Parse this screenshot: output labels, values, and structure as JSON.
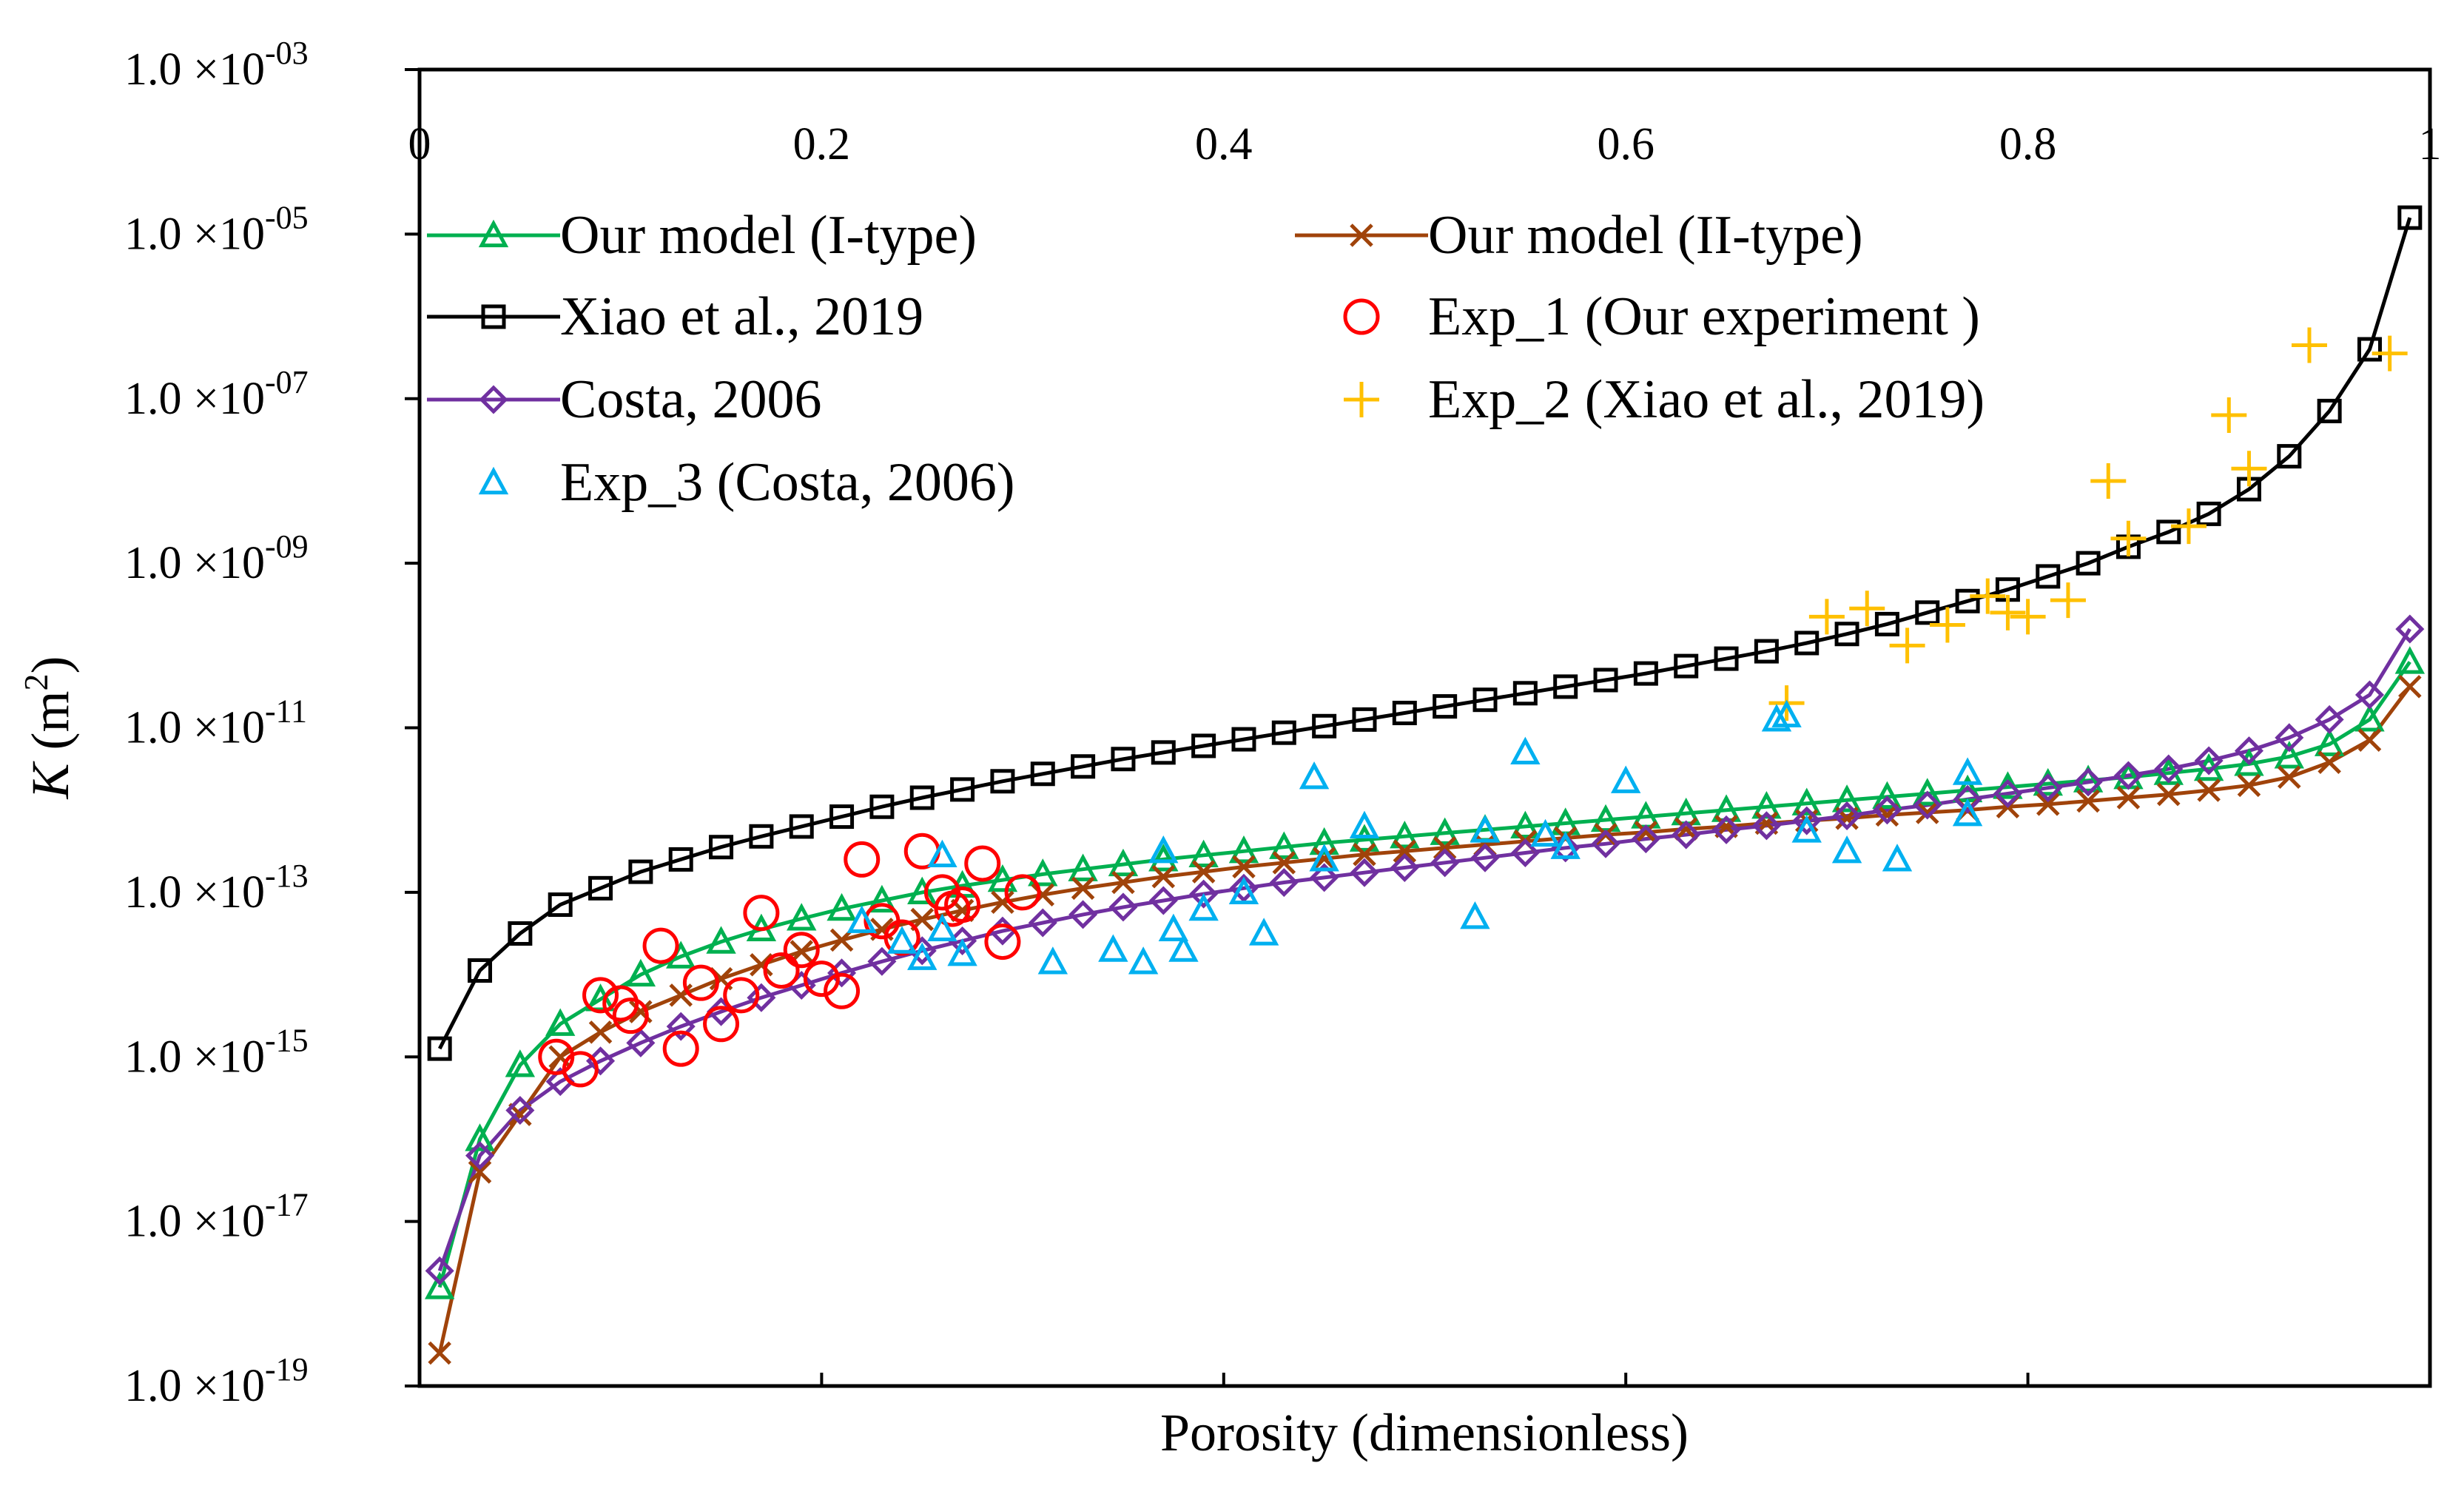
{
  "chart_data": {
    "type": "scatter",
    "title": "",
    "xlabel": "Porosity (dimensionless)",
    "ylabel": {
      "symbol": "K",
      "unit_open": " (m",
      "unit_sup": "2",
      "unit_close": ")"
    },
    "xlim": [
      0,
      1
    ],
    "ylim_log10": [
      -19,
      -3
    ],
    "x_ticks": [
      {
        "value": 0,
        "label": "0"
      },
      {
        "value": 0.2,
        "label": "0.2"
      },
      {
        "value": 0.4,
        "label": "0.4"
      },
      {
        "value": 0.6,
        "label": "0.6"
      },
      {
        "value": 0.8,
        "label": "0.8"
      },
      {
        "value": 1,
        "label": "1"
      }
    ],
    "y_ticks": [
      {
        "exp": -3,
        "mant": "1.0 ×10",
        "sup": "-03"
      },
      {
        "exp": -5,
        "mant": "1.0 ×10",
        "sup": "-05"
      },
      {
        "exp": -7,
        "mant": "1.0 ×10",
        "sup": "-07"
      },
      {
        "exp": -9,
        "mant": "1.0 ×10",
        "sup": "-09"
      },
      {
        "exp": -11,
        "mant": "1.0 ×10",
        "sup": "-11"
      },
      {
        "exp": -13,
        "mant": "1.0 ×10",
        "sup": "-13"
      },
      {
        "exp": -15,
        "mant": "1.0 ×10",
        "sup": "-15"
      },
      {
        "exp": -17,
        "mant": "1.0 ×10",
        "sup": "-17"
      },
      {
        "exp": -19,
        "mant": "1.0 ×10",
        "sup": "-19"
      }
    ],
    "x_tick_position": "top",
    "grid": false,
    "legend_position": "upper-left, two columns",
    "series": [
      {
        "name": "Our model (I-type)",
        "kind": "line",
        "marker": "triangle",
        "color": "#00b050",
        "points": [
          [
            0.01,
            -17.8
          ],
          [
            0.03,
            -16.0
          ],
          [
            0.05,
            -15.1
          ],
          [
            0.07,
            -14.6
          ],
          [
            0.09,
            -14.3
          ],
          [
            0.11,
            -14.0
          ],
          [
            0.13,
            -13.78
          ],
          [
            0.15,
            -13.6
          ],
          [
            0.17,
            -13.45
          ],
          [
            0.19,
            -13.32
          ],
          [
            0.21,
            -13.2
          ],
          [
            0.23,
            -13.1
          ],
          [
            0.25,
            -13.0
          ],
          [
            0.27,
            -12.92
          ],
          [
            0.29,
            -12.85
          ],
          [
            0.31,
            -12.78
          ],
          [
            0.33,
            -12.72
          ],
          [
            0.35,
            -12.66
          ],
          [
            0.37,
            -12.6
          ],
          [
            0.39,
            -12.55
          ],
          [
            0.41,
            -12.5
          ],
          [
            0.43,
            -12.45
          ],
          [
            0.45,
            -12.4
          ],
          [
            0.47,
            -12.36
          ],
          [
            0.49,
            -12.32
          ],
          [
            0.51,
            -12.28
          ],
          [
            0.53,
            -12.24
          ],
          [
            0.55,
            -12.2
          ],
          [
            0.57,
            -12.16
          ],
          [
            0.59,
            -12.12
          ],
          [
            0.61,
            -12.08
          ],
          [
            0.63,
            -12.04
          ],
          [
            0.65,
            -12.0
          ],
          [
            0.67,
            -11.96
          ],
          [
            0.69,
            -11.92
          ],
          [
            0.71,
            -11.88
          ],
          [
            0.73,
            -11.84
          ],
          [
            0.75,
            -11.8
          ],
          [
            0.77,
            -11.76
          ],
          [
            0.79,
            -11.72
          ],
          [
            0.81,
            -11.68
          ],
          [
            0.83,
            -11.64
          ],
          [
            0.85,
            -11.6
          ],
          [
            0.87,
            -11.55
          ],
          [
            0.89,
            -11.5
          ],
          [
            0.91,
            -11.44
          ],
          [
            0.93,
            -11.35
          ],
          [
            0.95,
            -11.2
          ],
          [
            0.97,
            -10.9
          ],
          [
            0.99,
            -10.2
          ]
        ]
      },
      {
        "name": "Our model (II-type)",
        "kind": "line",
        "marker": "cross",
        "color": "#a0430a",
        "points": [
          [
            0.01,
            -18.6
          ],
          [
            0.03,
            -16.4
          ],
          [
            0.05,
            -15.7
          ],
          [
            0.07,
            -15.0
          ],
          [
            0.09,
            -14.7
          ],
          [
            0.11,
            -14.45
          ],
          [
            0.13,
            -14.25
          ],
          [
            0.15,
            -14.05
          ],
          [
            0.17,
            -13.88
          ],
          [
            0.19,
            -13.72
          ],
          [
            0.21,
            -13.58
          ],
          [
            0.23,
            -13.45
          ],
          [
            0.25,
            -13.33
          ],
          [
            0.27,
            -13.22
          ],
          [
            0.29,
            -13.12
          ],
          [
            0.31,
            -13.03
          ],
          [
            0.33,
            -12.95
          ],
          [
            0.35,
            -12.88
          ],
          [
            0.37,
            -12.81
          ],
          [
            0.39,
            -12.75
          ],
          [
            0.41,
            -12.69
          ],
          [
            0.43,
            -12.64
          ],
          [
            0.45,
            -12.59
          ],
          [
            0.47,
            -12.54
          ],
          [
            0.49,
            -12.5
          ],
          [
            0.51,
            -12.46
          ],
          [
            0.53,
            -12.42
          ],
          [
            0.55,
            -12.38
          ],
          [
            0.57,
            -12.34
          ],
          [
            0.59,
            -12.3
          ],
          [
            0.61,
            -12.27
          ],
          [
            0.63,
            -12.23
          ],
          [
            0.65,
            -12.2
          ],
          [
            0.67,
            -12.16
          ],
          [
            0.69,
            -12.13
          ],
          [
            0.71,
            -12.1
          ],
          [
            0.73,
            -12.06
          ],
          [
            0.75,
            -12.03
          ],
          [
            0.77,
            -12.0
          ],
          [
            0.79,
            -11.96
          ],
          [
            0.81,
            -11.93
          ],
          [
            0.83,
            -11.89
          ],
          [
            0.85,
            -11.85
          ],
          [
            0.87,
            -11.81
          ],
          [
            0.89,
            -11.76
          ],
          [
            0.91,
            -11.7
          ],
          [
            0.93,
            -11.6
          ],
          [
            0.95,
            -11.42
          ],
          [
            0.97,
            -11.15
          ],
          [
            0.99,
            -10.5
          ]
        ]
      },
      {
        "name": "Xiao et al., 2019",
        "kind": "line",
        "marker": "square",
        "color": "#000000",
        "points": [
          [
            0.01,
            -14.9
          ],
          [
            0.03,
            -13.95
          ],
          [
            0.05,
            -13.5
          ],
          [
            0.07,
            -13.15
          ],
          [
            0.09,
            -12.95
          ],
          [
            0.11,
            -12.75
          ],
          [
            0.13,
            -12.6
          ],
          [
            0.15,
            -12.45
          ],
          [
            0.17,
            -12.32
          ],
          [
            0.19,
            -12.2
          ],
          [
            0.21,
            -12.08
          ],
          [
            0.23,
            -11.96
          ],
          [
            0.25,
            -11.85
          ],
          [
            0.27,
            -11.75
          ],
          [
            0.29,
            -11.65
          ],
          [
            0.31,
            -11.56
          ],
          [
            0.33,
            -11.47
          ],
          [
            0.35,
            -11.38
          ],
          [
            0.37,
            -11.3
          ],
          [
            0.39,
            -11.22
          ],
          [
            0.41,
            -11.14
          ],
          [
            0.43,
            -11.06
          ],
          [
            0.45,
            -10.98
          ],
          [
            0.47,
            -10.9
          ],
          [
            0.49,
            -10.82
          ],
          [
            0.51,
            -10.74
          ],
          [
            0.53,
            -10.66
          ],
          [
            0.55,
            -10.58
          ],
          [
            0.57,
            -10.5
          ],
          [
            0.59,
            -10.42
          ],
          [
            0.61,
            -10.34
          ],
          [
            0.63,
            -10.25
          ],
          [
            0.65,
            -10.16
          ],
          [
            0.67,
            -10.07
          ],
          [
            0.69,
            -9.97
          ],
          [
            0.71,
            -9.86
          ],
          [
            0.73,
            -9.74
          ],
          [
            0.75,
            -9.6
          ],
          [
            0.77,
            -9.46
          ],
          [
            0.79,
            -9.32
          ],
          [
            0.81,
            -9.16
          ],
          [
            0.83,
            -9.0
          ],
          [
            0.85,
            -8.8
          ],
          [
            0.87,
            -8.62
          ],
          [
            0.89,
            -8.4
          ],
          [
            0.91,
            -8.1
          ],
          [
            0.93,
            -7.7
          ],
          [
            0.95,
            -7.15
          ],
          [
            0.97,
            -6.4
          ],
          [
            0.99,
            -4.8
          ]
        ]
      },
      {
        "name": "Costa, 2006",
        "kind": "line",
        "marker": "diamond",
        "color": "#7030a0",
        "points": [
          [
            0.01,
            -17.6
          ],
          [
            0.03,
            -16.2
          ],
          [
            0.05,
            -15.65
          ],
          [
            0.07,
            -15.3
          ],
          [
            0.09,
            -15.05
          ],
          [
            0.11,
            -14.83
          ],
          [
            0.13,
            -14.63
          ],
          [
            0.15,
            -14.45
          ],
          [
            0.17,
            -14.28
          ],
          [
            0.19,
            -14.13
          ],
          [
            0.21,
            -13.98
          ],
          [
            0.23,
            -13.84
          ],
          [
            0.25,
            -13.71
          ],
          [
            0.27,
            -13.59
          ],
          [
            0.29,
            -13.47
          ],
          [
            0.31,
            -13.37
          ],
          [
            0.33,
            -13.27
          ],
          [
            0.35,
            -13.18
          ],
          [
            0.37,
            -13.1
          ],
          [
            0.39,
            -13.02
          ],
          [
            0.41,
            -12.95
          ],
          [
            0.43,
            -12.88
          ],
          [
            0.45,
            -12.82
          ],
          [
            0.47,
            -12.76
          ],
          [
            0.49,
            -12.7
          ],
          [
            0.51,
            -12.64
          ],
          [
            0.53,
            -12.58
          ],
          [
            0.55,
            -12.52
          ],
          [
            0.57,
            -12.46
          ],
          [
            0.59,
            -12.41
          ],
          [
            0.61,
            -12.35
          ],
          [
            0.63,
            -12.3
          ],
          [
            0.65,
            -12.24
          ],
          [
            0.67,
            -12.19
          ],
          [
            0.69,
            -12.13
          ],
          [
            0.71,
            -12.07
          ],
          [
            0.73,
            -12.0
          ],
          [
            0.75,
            -11.94
          ],
          [
            0.77,
            -11.87
          ],
          [
            0.79,
            -11.8
          ],
          [
            0.81,
            -11.73
          ],
          [
            0.83,
            -11.66
          ],
          [
            0.85,
            -11.58
          ],
          [
            0.87,
            -11.5
          ],
          [
            0.89,
            -11.4
          ],
          [
            0.91,
            -11.28
          ],
          [
            0.93,
            -11.12
          ],
          [
            0.95,
            -10.9
          ],
          [
            0.97,
            -10.6
          ],
          [
            0.99,
            -9.8
          ]
        ]
      },
      {
        "name": "Exp_1 (Our experiment )",
        "kind": "scatter",
        "marker": "circle",
        "color": "#ff0000",
        "points": [
          [
            0.068,
            -15.0
          ],
          [
            0.08,
            -15.15
          ],
          [
            0.09,
            -14.25
          ],
          [
            0.1,
            -14.35
          ],
          [
            0.105,
            -14.5
          ],
          [
            0.12,
            -13.65
          ],
          [
            0.13,
            -14.9
          ],
          [
            0.14,
            -14.1
          ],
          [
            0.15,
            -14.6
          ],
          [
            0.16,
            -14.25
          ],
          [
            0.17,
            -13.25
          ],
          [
            0.18,
            -13.95
          ],
          [
            0.19,
            -13.7
          ],
          [
            0.2,
            -14.05
          ],
          [
            0.21,
            -14.2
          ],
          [
            0.22,
            -12.6
          ],
          [
            0.23,
            -13.35
          ],
          [
            0.24,
            -13.55
          ],
          [
            0.25,
            -12.5
          ],
          [
            0.26,
            -13.0
          ],
          [
            0.265,
            -13.2
          ],
          [
            0.27,
            -13.15
          ],
          [
            0.28,
            -12.65
          ],
          [
            0.29,
            -13.6
          ],
          [
            0.3,
            -13.0
          ]
        ]
      },
      {
        "name": "Exp_2 (Xiao et al., 2019)",
        "kind": "scatter",
        "marker": "plus",
        "color": "#ffc000",
        "points": [
          [
            0.68,
            -10.7
          ],
          [
            0.7,
            -9.65
          ],
          [
            0.72,
            -9.55
          ],
          [
            0.74,
            -10.0
          ],
          [
            0.76,
            -9.75
          ],
          [
            0.78,
            -9.4
          ],
          [
            0.79,
            -9.6
          ],
          [
            0.8,
            -9.65
          ],
          [
            0.82,
            -9.45
          ],
          [
            0.84,
            -8.0
          ],
          [
            0.85,
            -8.7
          ],
          [
            0.88,
            -8.55
          ],
          [
            0.9,
            -7.2
          ],
          [
            0.91,
            -7.85
          ],
          [
            0.94,
            -6.35
          ],
          [
            0.98,
            -6.45
          ]
        ]
      },
      {
        "name": "Exp_3 (Costa, 2006)",
        "kind": "scatter",
        "marker": "triangle",
        "color": "#00b0f0",
        "points": [
          [
            0.22,
            -13.35
          ],
          [
            0.24,
            -13.6
          ],
          [
            0.25,
            -13.8
          ],
          [
            0.26,
            -13.45
          ],
          [
            0.26,
            -12.55
          ],
          [
            0.27,
            -13.75
          ],
          [
            0.315,
            -13.85
          ],
          [
            0.345,
            -13.7
          ],
          [
            0.36,
            -13.85
          ],
          [
            0.37,
            -12.5
          ],
          [
            0.375,
            -13.45
          ],
          [
            0.38,
            -13.7
          ],
          [
            0.39,
            -13.2
          ],
          [
            0.41,
            -13.0
          ],
          [
            0.42,
            -13.5
          ],
          [
            0.445,
            -11.6
          ],
          [
            0.45,
            -12.6
          ],
          [
            0.47,
            -12.2
          ],
          [
            0.525,
            -13.3
          ],
          [
            0.53,
            -12.25
          ],
          [
            0.55,
            -11.3
          ],
          [
            0.56,
            -12.3
          ],
          [
            0.57,
            -12.45
          ],
          [
            0.6,
            -11.65
          ],
          [
            0.675,
            -10.9
          ],
          [
            0.68,
            -10.85
          ],
          [
            0.69,
            -12.25
          ],
          [
            0.71,
            -12.5
          ],
          [
            0.735,
            -12.6
          ],
          [
            0.77,
            -11.55
          ],
          [
            0.77,
            -12.05
          ]
        ]
      }
    ]
  }
}
